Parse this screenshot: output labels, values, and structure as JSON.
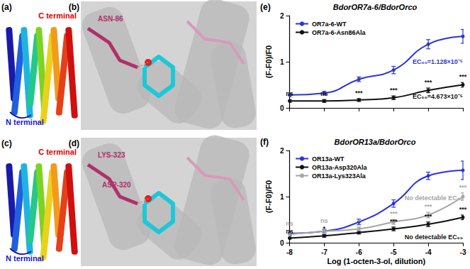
{
  "panels": [
    {
      "label": "(a)",
      "c_terminal": "C terminal",
      "n_terminal": "N terminal"
    },
    {
      "label": "(b)",
      "residues": [
        "ASN-86"
      ]
    },
    {
      "label": "(c)",
      "c_terminal": "C terminal",
      "n_terminal": "N terminal"
    },
    {
      "label": "(d)",
      "residues": [
        "LYS-323",
        "ASP-320"
      ]
    }
  ],
  "chart_data": [
    {
      "type": "line",
      "panel_label": "(e)",
      "title": "BdorOR7a-6/BdorOrco",
      "ylabel": "(F-F0)/F0",
      "x": [
        -8,
        -7,
        -6,
        -5,
        -4,
        -3
      ],
      "xlim": [
        -8,
        -3
      ],
      "xticks": [
        -8,
        -7,
        -6,
        -5,
        -4,
        -3
      ],
      "ylim": [
        0,
        2
      ],
      "yticks": [
        0,
        1,
        2
      ],
      "grid": false,
      "legend": "upper left",
      "tick_labels": "y",
      "marker": "circle",
      "line_style": "solid",
      "series": [
        {
          "name": "OR7a-6-WT",
          "color": "#2b35d6",
          "values": [
            0.28,
            0.32,
            0.62,
            0.82,
            1.38,
            1.55
          ],
          "errors": [
            0.04,
            0.04,
            0.05,
            0.08,
            0.1,
            0.15
          ],
          "ec50_label": "EC₅₀=1.128×10⁻⁵"
        },
        {
          "name": "OR7a-6-Asn86Ala",
          "color": "#111111",
          "values": [
            0.15,
            0.15,
            0.17,
            0.22,
            0.38,
            0.5
          ],
          "errors": [
            0.03,
            0.03,
            0.03,
            0.04,
            0.05,
            0.05
          ],
          "significance": [
            "ns",
            "ns",
            "***",
            "***",
            "***",
            "***"
          ],
          "ec50_label": "EC₅₀=4.673×10⁻⁵"
        }
      ]
    },
    {
      "type": "line",
      "panel_label": "(f)",
      "title": "BdorOR13a/BdorOrco",
      "ylabel": "(F-F0)/F0",
      "xlabel": "Log (1-octen-3-ol, dilution)",
      "x": [
        -8,
        -7,
        -6,
        -5,
        -4,
        -3
      ],
      "xlim": [
        -8,
        -3
      ],
      "xticks": [
        -8,
        -7,
        -6,
        -5,
        -4,
        -3
      ],
      "ylim": [
        0,
        2
      ],
      "yticks": [
        0,
        1,
        2
      ],
      "grid": false,
      "legend": "upper left",
      "marker": "circle",
      "line_style": "solid",
      "series": [
        {
          "name": "OR13a-WT",
          "color": "#2b35d6",
          "values": [
            0.2,
            0.25,
            0.45,
            0.85,
            1.45,
            1.57
          ],
          "errors": [
            0.04,
            0.04,
            0.06,
            0.08,
            0.08,
            0.2
          ]
        },
        {
          "name": "OR13a-Asp320Ala",
          "color": "#111111",
          "values": [
            0.1,
            0.15,
            0.22,
            0.3,
            0.4,
            0.55
          ],
          "errors": [
            0.02,
            0.03,
            0.03,
            0.04,
            0.05,
            0.05
          ],
          "significance": [
            "ns",
            "*",
            null,
            "***",
            "***",
            "***"
          ],
          "ec50_label": "No detectable EC₅₀"
        },
        {
          "name": "OR13a-Lys323Ala",
          "color": "#a6a6a6",
          "values": [
            0.18,
            0.25,
            0.3,
            0.45,
            0.6,
            1.0
          ],
          "errors": [
            0.03,
            0.04,
            0.04,
            0.05,
            0.06,
            0.08
          ],
          "significance": [
            "ns",
            "ns",
            "*",
            "***",
            "***",
            "***"
          ],
          "ec50_label": "No detectable EC₅₀"
        }
      ]
    }
  ]
}
